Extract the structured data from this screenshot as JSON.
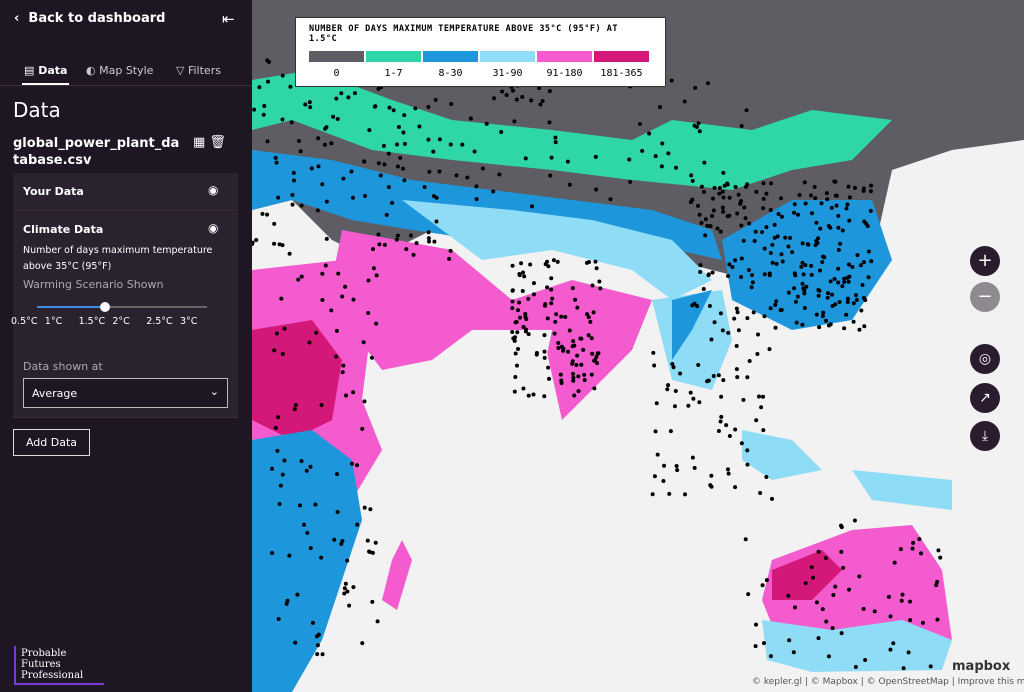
{
  "sidebar": {
    "back": "Back to dashboard",
    "tabs": [
      "Data",
      "Map Style",
      "Filters"
    ],
    "heading": "Data",
    "file_name": "global_power_plant_database.csv",
    "layers": [
      {
        "name": "Your Data"
      },
      {
        "name": "Climate Data",
        "description": "Number of days maximum temperature above 35°C (95°F)",
        "scenario_label": "Warming Scenario Shown",
        "scenario_ticks": [
          "0.5°C",
          "1°C",
          "1.5°C",
          "2°C",
          "2.5°C",
          "3°C"
        ],
        "shown_at_label": "Data shown at",
        "shown_at_value": "Average"
      }
    ],
    "add_button": "Add Data",
    "logo": "Probable Futures Professional"
  },
  "map": {
    "legend": {
      "title": "NUMBER OF DAYS MAXIMUM TEMPERATURE ABOVE 35°C (95°F) AT 1.5°C",
      "items": [
        {
          "label": "0",
          "color": "#5d5d63"
        },
        {
          "label": "1-7",
          "color": "#2fd6a7"
        },
        {
          "label": "8-30",
          "color": "#1e96dc"
        },
        {
          "label": "31-90",
          "color": "#8fdcf7"
        },
        {
          "label": "91-180",
          "color": "#f45bcf"
        },
        {
          "label": "181-365",
          "color": "#d4187a"
        }
      ]
    },
    "attribution": "© kepler.gl | © Mapbox | © OpenStreetMap | Improve this map",
    "mapbox": "mapbox"
  }
}
